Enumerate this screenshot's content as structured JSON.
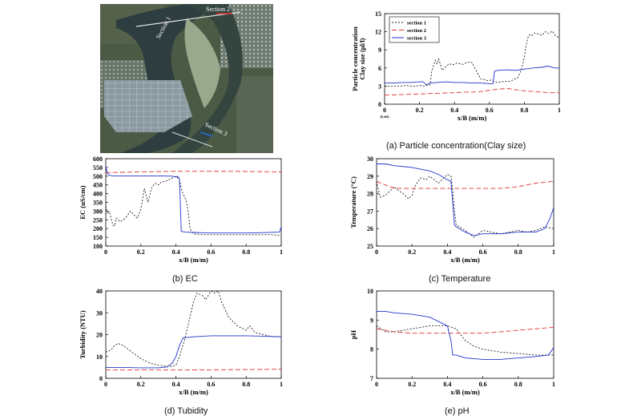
{
  "satellite": {
    "labels": [
      "Section 2",
      "Section 1",
      "Section 3"
    ]
  },
  "captions": {
    "a": "(a) Particle concentration(Clay size)",
    "b": "(b) EC",
    "c": "(c) Temperature",
    "d": "(d) Tubidity",
    "e": "(e) pH"
  },
  "chart_data": [
    {
      "id": "a",
      "type": "line",
      "title": "",
      "xlabel": "x/B (m/m)",
      "ylabel": "Particle concentration\nClay size (μl/l)",
      "xlim": [
        0,
        1
      ],
      "ylim": [
        0,
        15
      ],
      "xticks": [
        "0",
        "0.2",
        "0.4",
        "0.6",
        "0.8",
        "1"
      ],
      "yticks": [
        "0",
        "3",
        "6",
        "9",
        "12",
        "15"
      ],
      "x_annotation": "(Left)",
      "legend": "top-left",
      "series": [
        {
          "name": "section 1",
          "color": "#222222",
          "dash": "2,2",
          "x": [
            0,
            0.02,
            0.05,
            0.08,
            0.1,
            0.12,
            0.15,
            0.18,
            0.2,
            0.23,
            0.25,
            0.26,
            0.27,
            0.29,
            0.3,
            0.31,
            0.32,
            0.33,
            0.35,
            0.37,
            0.39,
            0.41,
            0.43,
            0.45,
            0.47,
            0.49,
            0.5,
            0.52,
            0.53,
            0.55,
            0.57,
            0.59,
            0.61,
            0.63,
            0.65,
            0.67,
            0.7,
            0.72,
            0.74,
            0.76,
            0.78,
            0.79,
            0.8,
            0.81,
            0.82,
            0.83,
            0.84,
            0.86,
            0.88,
            0.9,
            0.92,
            0.94,
            0.96,
            0.98,
            1
          ],
          "y": [
            3,
            3,
            3,
            3,
            3,
            3.1,
            3,
            3,
            3.1,
            3,
            3.2,
            3.2,
            5.5,
            7.3,
            6.7,
            7.5,
            6.5,
            5.6,
            6.2,
            6.7,
            6.5,
            6.8,
            6.7,
            6.6,
            6.9,
            7,
            6.9,
            5.8,
            5.3,
            4.2,
            4.1,
            3.9,
            4,
            3.7,
            3.6,
            3.7,
            3.8,
            3.8,
            4.1,
            4.3,
            5.5,
            6.5,
            7.8,
            9.7,
            11,
            11.5,
            11.3,
            11.8,
            11.6,
            11.4,
            12,
            11.7,
            12.1,
            11.3,
            11
          ]
        },
        {
          "name": "section 2",
          "color": "#e03030",
          "dash": "6,3",
          "x": [
            0,
            0.1,
            0.2,
            0.3,
            0.4,
            0.45,
            0.5,
            0.55,
            0.6,
            0.65,
            0.7,
            0.75,
            0.8,
            0.85,
            0.9,
            0.95,
            1
          ],
          "y": [
            1.5,
            1.6,
            1.7,
            1.8,
            1.9,
            2,
            2,
            2.1,
            2.3,
            2.5,
            2.6,
            2.4,
            2.2,
            2.1,
            2,
            1.9,
            1.9
          ]
        },
        {
          "name": "section 3",
          "color": "#2233cc",
          "dash": "",
          "x": [
            0,
            0.05,
            0.1,
            0.15,
            0.2,
            0.22,
            0.24,
            0.26,
            0.3,
            0.35,
            0.4,
            0.45,
            0.5,
            0.55,
            0.6,
            0.62,
            0.63,
            0.65,
            0.7,
            0.75,
            0.8,
            0.85,
            0.9,
            0.93,
            0.95,
            0.97,
            1
          ],
          "y": [
            3.5,
            3.5,
            3.6,
            3.6,
            3.7,
            3.7,
            3.2,
            3.5,
            3.6,
            3.7,
            3.6,
            3.6,
            3.5,
            3.5,
            3.4,
            3.4,
            5.5,
            5.6,
            5.7,
            5.6,
            5.8,
            6,
            6.1,
            6.3,
            6.2,
            6,
            6
          ]
        }
      ]
    },
    {
      "id": "b",
      "type": "line",
      "title": "",
      "xlabel": "x/B (m/m)",
      "ylabel": "EC (uS/cm)",
      "xlim": [
        0,
        1
      ],
      "ylim": [
        100,
        600
      ],
      "xticks": [
        "0",
        "0.2",
        "0.4",
        "0.6",
        "0.8",
        "1"
      ],
      "yticks": [
        "100",
        "150",
        "200",
        "250",
        "300",
        "350",
        "400",
        "450",
        "500",
        "550",
        "600"
      ],
      "series": [
        {
          "color": "#222222",
          "dash": "2,2",
          "x": [
            0,
            0.01,
            0.02,
            0.04,
            0.05,
            0.06,
            0.08,
            0.1,
            0.12,
            0.14,
            0.16,
            0.18,
            0.2,
            0.22,
            0.24,
            0.26,
            0.28,
            0.3,
            0.32,
            0.34,
            0.36,
            0.38,
            0.4,
            0.42,
            0.43,
            0.44,
            0.45,
            0.46,
            0.47,
            0.48,
            0.5,
            0.55,
            0.6,
            0.65,
            0.7,
            0.75,
            0.8,
            0.85,
            0.9,
            0.95,
            1
          ],
          "y": [
            330,
            285,
            300,
            220,
            215,
            260,
            240,
            250,
            270,
            300,
            280,
            260,
            310,
            430,
            350,
            430,
            460,
            450,
            470,
            470,
            480,
            490,
            500,
            480,
            430,
            400,
            380,
            350,
            300,
            200,
            170,
            165,
            165,
            165,
            165,
            165,
            165,
            165,
            165,
            165,
            160
          ]
        },
        {
          "color": "#e03030",
          "dash": "6,3",
          "x": [
            0,
            0.2,
            0.4,
            0.6,
            0.8,
            1
          ],
          "y": [
            520,
            525,
            528,
            528,
            527,
            525
          ]
        },
        {
          "color": "#2233cc",
          "dash": "",
          "x": [
            0,
            0.01,
            0.02,
            0.04,
            0.1,
            0.2,
            0.3,
            0.38,
            0.4,
            0.41,
            0.42,
            0.43,
            0.44,
            0.45,
            0.5,
            0.6,
            0.7,
            0.8,
            0.9,
            0.99,
            1
          ],
          "y": [
            555,
            515,
            505,
            502,
            502,
            502,
            502,
            500,
            495,
            500,
            485,
            185,
            182,
            180,
            178,
            175,
            175,
            175,
            177,
            180,
            210
          ]
        }
      ]
    },
    {
      "id": "c",
      "type": "line",
      "title": "",
      "xlabel": "x/B (m/m)",
      "ylabel": "Temperature (°C)",
      "xlim": [
        0,
        1
      ],
      "ylim": [
        25,
        30
      ],
      "xticks": [
        "0",
        "0.2",
        "0.4",
        "0.6",
        "0.8",
        "1"
      ],
      "yticks": [
        "25",
        "26",
        "27",
        "28",
        "29",
        "30"
      ],
      "series": [
        {
          "color": "#222222",
          "dash": "2,2",
          "x": [
            0,
            0.02,
            0.05,
            0.08,
            0.1,
            0.12,
            0.15,
            0.18,
            0.2,
            0.22,
            0.25,
            0.28,
            0.3,
            0.35,
            0.4,
            0.42,
            0.43,
            0.44,
            0.45,
            0.5,
            0.55,
            0.6,
            0.65,
            0.7,
            0.75,
            0.8,
            0.85,
            0.9,
            0.95,
            1
          ],
          "y": [
            28.7,
            27.8,
            27.9,
            28.2,
            28.4,
            28.2,
            28.0,
            27.7,
            27.9,
            28.5,
            28.9,
            28.8,
            29.0,
            28.6,
            29.1,
            29.0,
            28.2,
            27.0,
            26.2,
            25.9,
            25.5,
            25.9,
            25.8,
            25.7,
            25.8,
            25.9,
            25.8,
            25.9,
            26.1,
            26.0
          ]
        },
        {
          "color": "#e03030",
          "dash": "6,3",
          "x": [
            0,
            0.05,
            0.1,
            0.2,
            0.3,
            0.4,
            0.5,
            0.6,
            0.7,
            0.8,
            0.9,
            1
          ],
          "y": [
            28.7,
            28.5,
            28.3,
            28.3,
            28.3,
            28.3,
            28.3,
            28.3,
            28.3,
            28.4,
            28.6,
            28.7
          ]
        },
        {
          "color": "#2233cc",
          "dash": "",
          "x": [
            0,
            0.05,
            0.1,
            0.2,
            0.3,
            0.35,
            0.4,
            0.42,
            0.43,
            0.44,
            0.45,
            0.5,
            0.55,
            0.6,
            0.7,
            0.8,
            0.9,
            0.95,
            0.98,
            1
          ],
          "y": [
            29.7,
            29.7,
            29.6,
            29.5,
            29.3,
            29.1,
            28.8,
            28.7,
            27.5,
            26.2,
            26.1,
            25.8,
            25.6,
            25.7,
            25.7,
            25.8,
            25.8,
            26.0,
            26.6,
            27.2
          ]
        }
      ]
    },
    {
      "id": "d",
      "type": "line",
      "title": "",
      "xlabel": "x/B (m/m)",
      "ylabel": "Turbidity (NTU)",
      "xlim": [
        0,
        1
      ],
      "ylim": [
        0,
        40
      ],
      "xticks": [
        "0",
        "0.2",
        "0.4",
        "0.6",
        "0.8",
        "1"
      ],
      "yticks": [
        "0",
        "10",
        "20",
        "30",
        "40"
      ],
      "series": [
        {
          "color": "#222222",
          "dash": "2,2",
          "x": [
            0,
            0.03,
            0.05,
            0.07,
            0.1,
            0.15,
            0.2,
            0.25,
            0.3,
            0.35,
            0.38,
            0.4,
            0.42,
            0.45,
            0.48,
            0.5,
            0.52,
            0.55,
            0.57,
            0.6,
            0.62,
            0.64,
            0.66,
            0.7,
            0.75,
            0.8,
            0.82,
            0.85,
            0.9,
            0.95,
            1
          ],
          "y": [
            12,
            13,
            15,
            16,
            15,
            12,
            9,
            7,
            6,
            5.5,
            5.5,
            6,
            10,
            18,
            28,
            35,
            39,
            38,
            36,
            40,
            39,
            40,
            35,
            28,
            24,
            22,
            24,
            21,
            20,
            19,
            19
          ]
        },
        {
          "color": "#e03030",
          "dash": "6,3",
          "x": [
            0,
            0.2,
            0.4,
            0.6,
            0.8,
            1
          ],
          "y": [
            3.8,
            3.8,
            3.8,
            3.9,
            4,
            4.2
          ]
        },
        {
          "color": "#2233cc",
          "dash": "",
          "x": [
            0,
            0.1,
            0.2,
            0.3,
            0.35,
            0.38,
            0.4,
            0.42,
            0.44,
            0.5,
            0.6,
            0.7,
            0.8,
            0.9,
            1
          ],
          "y": [
            5,
            5,
            4.8,
            4.8,
            5.2,
            7,
            10,
            15,
            18.5,
            19,
            19.5,
            19.5,
            19.5,
            19.3,
            19
          ]
        }
      ]
    },
    {
      "id": "e",
      "type": "line",
      "title": "",
      "xlabel": "x/B (m/m)",
      "ylabel": "pH",
      "xlim": [
        0,
        1
      ],
      "ylim": [
        7,
        10
      ],
      "xticks": [
        "0",
        "0.2",
        "0.4",
        "0.6",
        "0.8",
        "1"
      ],
      "yticks": [
        "7",
        "8",
        "9",
        "10"
      ],
      "series": [
        {
          "color": "#222222",
          "dash": "2,2",
          "x": [
            0,
            0.05,
            0.1,
            0.2,
            0.3,
            0.35,
            0.4,
            0.45,
            0.5,
            0.55,
            0.6,
            0.7,
            0.8,
            0.9,
            1
          ],
          "y": [
            8.8,
            8.6,
            8.6,
            8.7,
            8.8,
            8.8,
            8.8,
            8.7,
            8.3,
            8.1,
            8.0,
            7.9,
            7.85,
            7.8,
            7.8
          ]
        },
        {
          "color": "#e03030",
          "dash": "6,3",
          "x": [
            0,
            0.1,
            0.2,
            0.3,
            0.4,
            0.5,
            0.6,
            0.7,
            0.8,
            0.9,
            1
          ],
          "y": [
            8.7,
            8.6,
            8.55,
            8.55,
            8.55,
            8.55,
            8.55,
            8.6,
            8.65,
            8.7,
            8.75
          ]
        },
        {
          "color": "#2233cc",
          "dash": "",
          "x": [
            0,
            0.05,
            0.1,
            0.2,
            0.3,
            0.4,
            0.42,
            0.43,
            0.45,
            0.5,
            0.6,
            0.7,
            0.8,
            0.9,
            0.97,
            1
          ],
          "y": [
            9.3,
            9.3,
            9.25,
            9.2,
            9.1,
            8.8,
            8.3,
            7.8,
            7.8,
            7.7,
            7.65,
            7.65,
            7.7,
            7.75,
            7.8,
            8.05
          ]
        }
      ]
    }
  ]
}
